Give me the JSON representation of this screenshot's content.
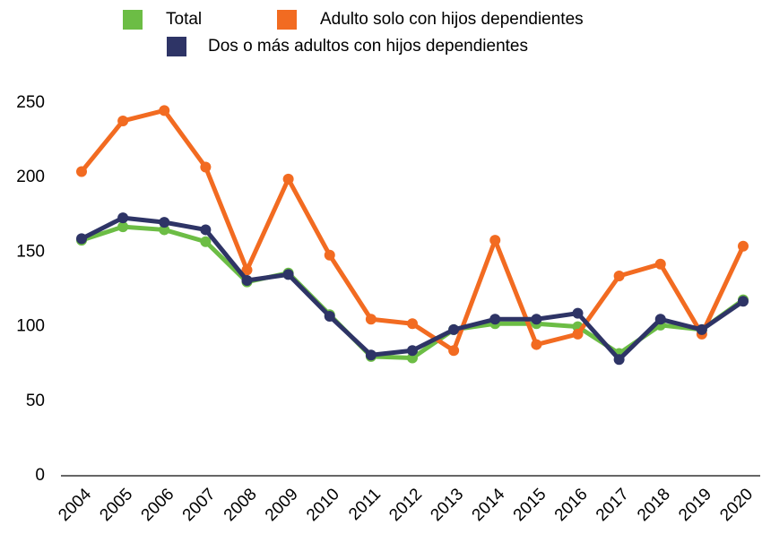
{
  "chart_data": {
    "type": "line",
    "categories": [
      "2004",
      "2005",
      "2006",
      "2007",
      "2008",
      "2009",
      "2010",
      "2011",
      "2012",
      "2013",
      "2014",
      "2015",
      "2016",
      "2017",
      "2018",
      "2019",
      "2020"
    ],
    "series": [
      {
        "name": "Total",
        "color": "#6cbd45",
        "values": [
          158,
          167,
          165,
          157,
          130,
          136,
          108,
          80,
          79,
          98,
          102,
          102,
          100,
          82,
          101,
          98,
          118
        ]
      },
      {
        "name": "Adulto solo con hijos dependientes",
        "color": "#f26b21",
        "values": [
          204,
          238,
          245,
          207,
          138,
          199,
          148,
          105,
          102,
          84,
          158,
          88,
          95,
          134,
          142,
          95,
          154
        ]
      },
      {
        "name": "Dos o más adultos con hijos dependientes",
        "color": "#2e3466",
        "values": [
          159,
          173,
          170,
          165,
          131,
          135,
          107,
          81,
          84,
          98,
          105,
          105,
          109,
          78,
          105,
          98,
          117
        ]
      }
    ],
    "ylim": [
      0,
      250
    ],
    "yticks": [
      0,
      50,
      100,
      150,
      200,
      250
    ],
    "grid": false,
    "legend": "top"
  }
}
